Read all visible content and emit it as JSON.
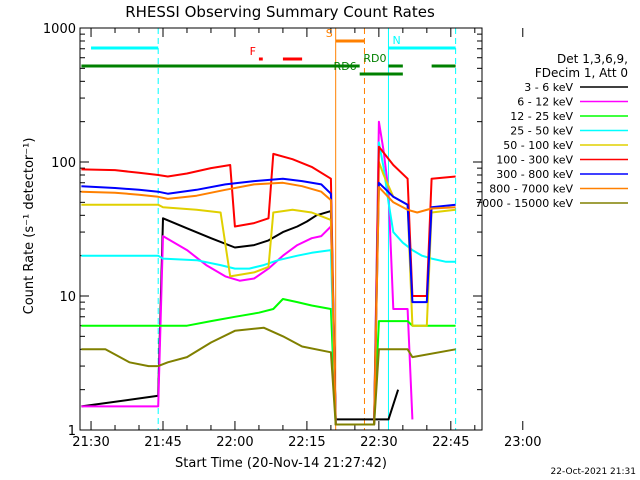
{
  "chart_data": {
    "type": "line",
    "title": "RHESSI Observing Summary Count Rates",
    "xlabel": "Start Time (20-Nov-14 21:27:42)",
    "ylabel": "Count Rate (s⁻¹ detector⁻¹)",
    "y_scale": "log",
    "ylim": [
      1,
      1000
    ],
    "xlim_minutes_after_2130": [
      -2.3,
      81.5
    ],
    "x_ticks": [
      "21:30",
      "21:45",
      "22:00",
      "22:15",
      "22:30",
      "22:45",
      "23:00"
    ],
    "y_ticks": [
      "1",
      "10",
      "100",
      "1000"
    ],
    "legend_header": [
      "Det 1,3,6,9,",
      "FDecim 1, Att 0"
    ],
    "legend_position": "right",
    "timestamp": "22-Oct-2021 21:31",
    "series": [
      {
        "name": "3 - 6 keV",
        "color": "#000000",
        "points": [
          [
            -2,
            1.5
          ],
          [
            14,
            1.8
          ],
          [
            15,
            38
          ],
          [
            20,
            32
          ],
          [
            25,
            27
          ],
          [
            30,
            23
          ],
          [
            34,
            24
          ],
          [
            37,
            26
          ],
          [
            40,
            30
          ],
          [
            43,
            33
          ],
          [
            45,
            36
          ],
          [
            47,
            40
          ],
          [
            50,
            43
          ],
          [
            51,
            1.2
          ],
          [
            62,
            1.2
          ],
          [
            64,
            2.0
          ]
        ]
      },
      {
        "name": "6 - 12 keV",
        "color": "#ff00ff",
        "points": [
          [
            -2,
            1.5
          ],
          [
            14,
            1.5
          ],
          [
            15,
            28
          ],
          [
            20,
            22
          ],
          [
            24,
            17
          ],
          [
            28,
            14
          ],
          [
            31,
            13
          ],
          [
            34,
            13.5
          ],
          [
            37,
            16
          ],
          [
            40,
            20
          ],
          [
            43,
            24
          ],
          [
            46,
            27
          ],
          [
            48,
            28
          ],
          [
            50,
            33
          ],
          [
            51,
            1.1
          ],
          [
            59,
            1.1
          ],
          [
            60,
            200
          ],
          [
            61,
            120
          ],
          [
            62,
            60
          ],
          [
            63,
            8
          ],
          [
            66,
            8
          ],
          [
            67,
            1.2
          ]
        ]
      },
      {
        "name": "12 - 25 keV",
        "color": "#00ff00",
        "points": [
          [
            -2,
            6
          ],
          [
            14,
            6
          ],
          [
            15,
            6
          ],
          [
            20,
            6
          ],
          [
            25,
            6.5
          ],
          [
            30,
            7
          ],
          [
            35,
            7.5
          ],
          [
            38,
            8
          ],
          [
            40,
            9.5
          ],
          [
            43,
            9
          ],
          [
            46,
            8.5
          ],
          [
            50,
            8
          ],
          [
            51,
            1.1
          ],
          [
            59,
            1.1
          ],
          [
            60,
            6.5
          ],
          [
            66,
            6.5
          ],
          [
            67,
            6
          ],
          [
            76,
            6
          ]
        ]
      },
      {
        "name": "25 - 50 keV",
        "color": "#00ffff",
        "points": [
          [
            -2,
            20
          ],
          [
            14,
            20
          ],
          [
            15,
            19
          ],
          [
            22,
            18.5
          ],
          [
            27,
            17
          ],
          [
            30,
            16
          ],
          [
            33,
            16
          ],
          [
            36,
            17
          ],
          [
            39,
            18.5
          ],
          [
            43,
            20
          ],
          [
            46,
            21
          ],
          [
            50,
            22
          ],
          [
            51,
            1.1
          ],
          [
            59,
            1.1
          ],
          [
            60,
            140
          ],
          [
            61,
            90
          ],
          [
            62,
            50
          ],
          [
            63,
            30
          ],
          [
            65,
            25
          ],
          [
            67,
            22
          ],
          [
            69,
            20
          ],
          [
            71,
            19
          ],
          [
            74,
            18
          ],
          [
            76,
            18
          ]
        ]
      },
      {
        "name": "50 - 100 keV",
        "color": "#e0d000",
        "points": [
          [
            -2,
            48
          ],
          [
            14,
            48
          ],
          [
            15,
            46
          ],
          [
            22,
            44
          ],
          [
            27,
            42
          ],
          [
            29,
            14
          ],
          [
            34,
            15
          ],
          [
            37,
            16.5
          ],
          [
            38,
            42
          ],
          [
            42,
            44
          ],
          [
            46,
            42
          ],
          [
            50,
            37
          ],
          [
            51,
            1.1
          ],
          [
            59,
            1.1
          ],
          [
            60,
            100
          ],
          [
            61,
            80
          ],
          [
            63,
            55
          ],
          [
            66,
            48
          ],
          [
            67,
            6
          ],
          [
            70,
            6
          ],
          [
            71,
            42
          ],
          [
            76,
            44
          ]
        ]
      },
      {
        "name": "100 - 300 keV",
        "color": "#ff0000",
        "points": [
          [
            -2,
            88
          ],
          [
            5,
            87
          ],
          [
            10,
            83
          ],
          [
            14,
            80
          ],
          [
            16,
            78
          ],
          [
            20,
            82
          ],
          [
            25,
            90
          ],
          [
            29,
            95
          ],
          [
            30,
            33
          ],
          [
            34,
            35
          ],
          [
            37,
            38
          ],
          [
            38,
            115
          ],
          [
            42,
            105
          ],
          [
            46,
            92
          ],
          [
            50,
            75
          ],
          [
            51,
            1.1
          ],
          [
            59,
            1.1
          ],
          [
            60,
            130
          ],
          [
            63,
            95
          ],
          [
            66,
            75
          ],
          [
            67,
            10
          ],
          [
            70,
            10
          ],
          [
            71,
            75
          ],
          [
            76,
            78
          ]
        ]
      },
      {
        "name": "300 - 800 keV",
        "color": "#0000ff",
        "points": [
          [
            -2,
            66
          ],
          [
            5,
            64
          ],
          [
            10,
            62
          ],
          [
            14,
            60
          ],
          [
            16,
            58
          ],
          [
            22,
            62
          ],
          [
            28,
            68
          ],
          [
            34,
            72
          ],
          [
            40,
            75
          ],
          [
            44,
            72
          ],
          [
            48,
            68
          ],
          [
            50,
            58
          ],
          [
            51,
            1.1
          ],
          [
            59,
            1.1
          ],
          [
            60,
            70
          ],
          [
            63,
            55
          ],
          [
            66,
            48
          ],
          [
            67,
            9
          ],
          [
            70,
            9
          ],
          [
            71,
            46
          ],
          [
            76,
            48
          ]
        ]
      },
      {
        "name": "800 - 7000 keV",
        "color": "#ff8000",
        "points": [
          [
            -2,
            60
          ],
          [
            5,
            59
          ],
          [
            10,
            57
          ],
          [
            14,
            55
          ],
          [
            16,
            53
          ],
          [
            22,
            56
          ],
          [
            28,
            62
          ],
          [
            34,
            68
          ],
          [
            40,
            70
          ],
          [
            44,
            66
          ],
          [
            48,
            60
          ],
          [
            50,
            52
          ],
          [
            51,
            1.1
          ],
          [
            59,
            1.1
          ],
          [
            60,
            65
          ],
          [
            63,
            50
          ],
          [
            66,
            44
          ],
          [
            68,
            42
          ],
          [
            71,
            45
          ],
          [
            76,
            46
          ]
        ]
      },
      {
        "name": "7000 - 15000 keV",
        "color": "#808000",
        "points": [
          [
            -2,
            4
          ],
          [
            3,
            4
          ],
          [
            8,
            3.2
          ],
          [
            12,
            3
          ],
          [
            14,
            3
          ],
          [
            16,
            3.2
          ],
          [
            20,
            3.5
          ],
          [
            25,
            4.5
          ],
          [
            30,
            5.5
          ],
          [
            36,
            5.8
          ],
          [
            40,
            5
          ],
          [
            44,
            4.2
          ],
          [
            50,
            3.8
          ],
          [
            51,
            1.1
          ],
          [
            59,
            1.1
          ],
          [
            60,
            4
          ],
          [
            66,
            4
          ],
          [
            67,
            3.5
          ],
          [
            76,
            4
          ]
        ]
      }
    ],
    "annotations": [
      {
        "label": "N",
        "color": "#00ffff",
        "segments": [
          [
            0,
            14
          ],
          [
            62,
            76
          ]
        ]
      },
      {
        "label": "S",
        "color": "#ff8000",
        "segments": [
          [
            51,
            57
          ]
        ]
      },
      {
        "label": "F",
        "color": "#ff0000",
        "segments": [
          [
            35,
            35.8
          ],
          [
            40,
            44
          ]
        ]
      },
      {
        "label": "RD0",
        "color": "#008000",
        "segments": [
          [
            -2,
            56
          ],
          [
            62,
            65
          ],
          [
            71,
            76
          ]
        ]
      },
      {
        "label": "RD6",
        "color": "#008000",
        "segments": [
          [
            56,
            65
          ]
        ]
      }
    ],
    "markers": [
      {
        "label": "N-left",
        "color": "#00ffff",
        "style": "dashed",
        "x": 14
      },
      {
        "label": "N-right",
        "color": "#00ffff",
        "style": "dashed",
        "x": 76
      },
      {
        "label": "S-left",
        "color": "#ff8000",
        "style": "solid",
        "x": 51
      },
      {
        "label": "S-right",
        "color": "#ff8000",
        "style": "dashed",
        "x": 57
      },
      {
        "label": "SAA",
        "color": "#00ffff",
        "style": "solid",
        "x": 62
      }
    ]
  }
}
